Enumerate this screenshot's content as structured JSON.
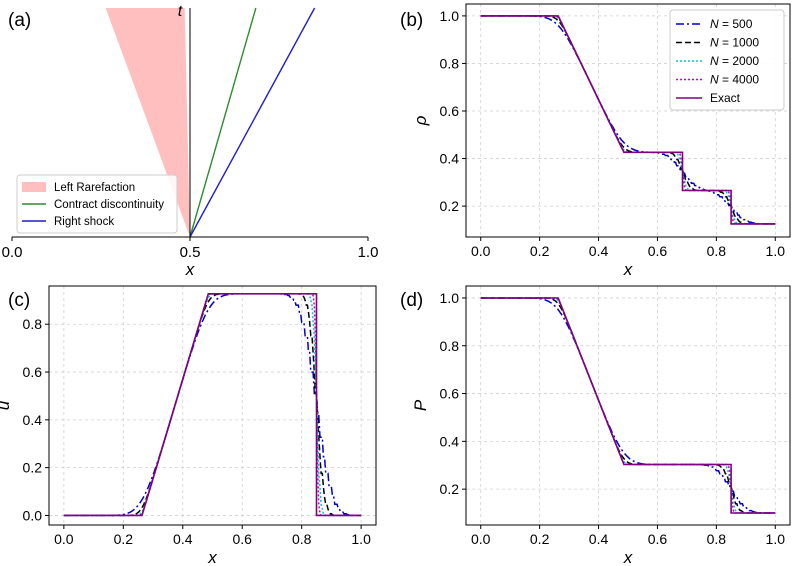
{
  "chart_data": [
    {
      "panel_label": "(a)",
      "type": "line",
      "title": "",
      "xlabel": "x",
      "ylabel": "t",
      "xlim": [
        0.0,
        1.0
      ],
      "xticks": [
        "0.0",
        "0.5",
        "1.0"
      ],
      "grid": false,
      "origin_x": 0.5,
      "legend": {
        "position": "bottom-left",
        "entries": [
          {
            "label": "Left Rarefaction",
            "color": "#ffbfbf",
            "kind": "patch"
          },
          {
            "label": "Contract discontinuity",
            "color": "#2e8b2e",
            "kind": "line"
          },
          {
            "label": "Right shock",
            "color": "#1f1fd0",
            "kind": "line"
          }
        ]
      },
      "series": [
        {
          "name": "Left Rarefaction",
          "kind": "fan",
          "x_top": [
            0.263,
            0.485
          ],
          "color": "#ffbfbf"
        },
        {
          "name": "Contract discontinuity",
          "kind": "ray",
          "x_top": 0.685,
          "color": "#2e8b2e"
        },
        {
          "name": "Right shock",
          "kind": "ray",
          "x_top": 0.85,
          "color": "#1f1fd0"
        }
      ]
    },
    {
      "panel_label": "(b)",
      "type": "line",
      "xlabel": "x",
      "ylabel": "ρ",
      "xlim": [
        -0.05,
        1.05
      ],
      "ylim": [
        0.07,
        1.05
      ],
      "xticks": [
        "0.0",
        "0.2",
        "0.4",
        "0.6",
        "0.8",
        "1.0"
      ],
      "yticks": [
        "0.2",
        "0.4",
        "0.6",
        "0.8",
        "1.0"
      ],
      "grid": true,
      "legend": {
        "position": "top-right",
        "entries": [
          "N = 500",
          "N = 1000",
          "N = 2000",
          "N = 4000",
          "Exact"
        ]
      },
      "exact": {
        "x": [
          0,
          0.263,
          0.486,
          0.685,
          0.685,
          0.85,
          0.85,
          1.0
        ],
        "y": [
          1.0,
          1.0,
          0.4263,
          0.4263,
          0.2656,
          0.2656,
          0.125,
          0.125
        ]
      }
    },
    {
      "panel_label": "(c)",
      "type": "line",
      "xlabel": "x",
      "ylabel": "u",
      "xlim": [
        -0.05,
        1.05
      ],
      "ylim": [
        -0.04,
        0.96
      ],
      "xticks": [
        "0.0",
        "0.2",
        "0.4",
        "0.6",
        "0.8",
        "1.0"
      ],
      "yticks": [
        "0.0",
        "0.2",
        "0.4",
        "0.6",
        "0.8"
      ],
      "grid": true,
      "exact": {
        "x": [
          0,
          0.263,
          0.486,
          0.85,
          0.85,
          1.0
        ],
        "y": [
          0.0,
          0.0,
          0.9274,
          0.9274,
          0.0,
          0.0
        ]
      }
    },
    {
      "panel_label": "(d)",
      "type": "line",
      "xlabel": "x",
      "ylabel": "P",
      "xlim": [
        -0.05,
        1.05
      ],
      "ylim": [
        0.05,
        1.05
      ],
      "xticks": [
        "0.0",
        "0.2",
        "0.4",
        "0.6",
        "0.8",
        "1.0"
      ],
      "yticks": [
        "0.2",
        "0.4",
        "0.6",
        "0.8",
        "1.0"
      ],
      "grid": true,
      "exact": {
        "x": [
          0,
          0.263,
          0.486,
          0.85,
          0.85,
          1.0
        ],
        "y": [
          1.0,
          1.0,
          0.3031,
          0.3031,
          0.1,
          0.1
        ]
      }
    }
  ],
  "series_styles": [
    {
      "name": "N = 500",
      "N": 500,
      "color": "#0000cc",
      "dash": "8,3,2,3",
      "smear": 0.04
    },
    {
      "name": "N = 1000",
      "N": 1000,
      "color": "#000000",
      "dash": "6,3",
      "smear": 0.02
    },
    {
      "name": "N = 2000",
      "N": 2000,
      "color": "#00cccc",
      "dash": "2,2",
      "smear": 0.01
    },
    {
      "name": "N = 4000",
      "N": 4000,
      "color": "#cc00cc",
      "dash": "2,2",
      "smear": 0.005
    },
    {
      "name": "Exact",
      "color": "#800080",
      "dash": "",
      "smear": 0
    }
  ]
}
